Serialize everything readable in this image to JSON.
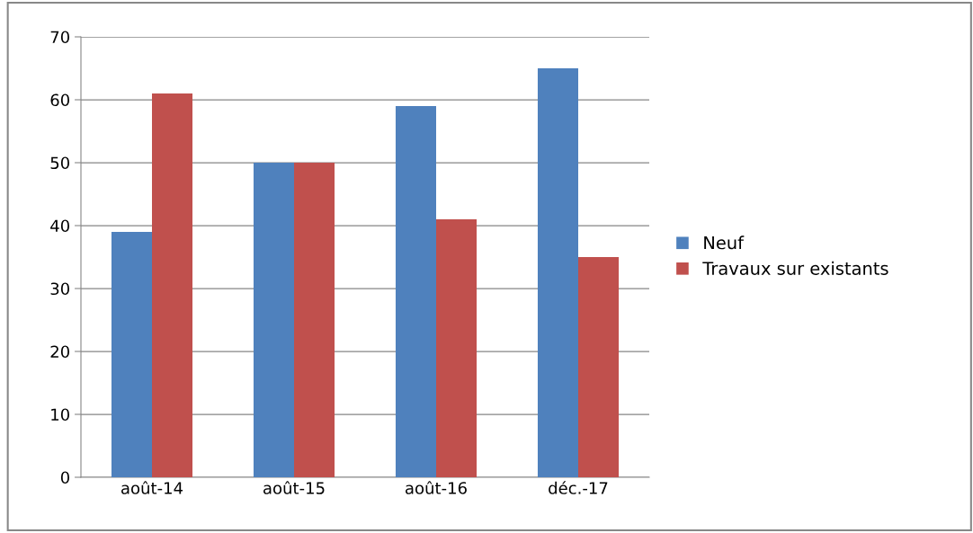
{
  "chart_data": {
    "type": "bar",
    "categories": [
      "août-14",
      "août-15",
      "août-16",
      "déc.-17"
    ],
    "series": [
      {
        "name": "Neuf",
        "color": "#4f81bd",
        "values": [
          39,
          50,
          59,
          65
        ]
      },
      {
        "name": "Travaux sur existants",
        "color": "#c0504d",
        "values": [
          61,
          50,
          41,
          35
        ]
      }
    ],
    "ylim": [
      0,
      70
    ],
    "yticks": [
      0,
      10,
      20,
      30,
      40,
      50,
      60,
      70
    ],
    "grid": "y",
    "legend": "right"
  }
}
